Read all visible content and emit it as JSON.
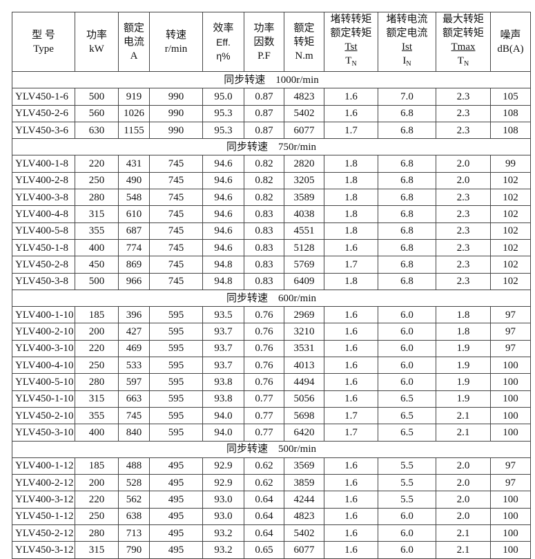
{
  "headers": [
    {
      "l1": "型 号",
      "l2": "Type"
    },
    {
      "l1": "功率",
      "l2": "kW"
    },
    {
      "l1": "额定",
      "l2": "电流",
      "l3": "A"
    },
    {
      "l1": "转速",
      "l2": "r/min"
    },
    {
      "l1": "效率",
      "l2": "Eff.",
      "l3": "η%"
    },
    {
      "l1": "功率",
      "l2": "因数",
      "l3": "P.F"
    },
    {
      "l1": "额定",
      "l2": "转矩",
      "l3": "N.m"
    },
    {
      "l1": "堵转转矩",
      "l2": "额定转矩",
      "num": "Tst",
      "den": "T",
      "sub": "N"
    },
    {
      "l1": "堵转电流",
      "l2": "额定电流",
      "num": "Ist",
      "den": "I",
      "sub": "N"
    },
    {
      "l1": "最大转矩",
      "l2": "额定转矩",
      "num": "Tmax",
      "den": "T",
      "sub": "N"
    },
    {
      "l1": "噪声",
      "l2": "dB(A)"
    }
  ],
  "groups": [
    {
      "title": "同步转速　1000r/min",
      "rows": [
        [
          "YLV450-1-6",
          "500",
          "919",
          "990",
          "95.0",
          "0.87",
          "4823",
          "1.6",
          "7.0",
          "2.3",
          "105"
        ],
        [
          "YLV450-2-6",
          "560",
          "1026",
          "990",
          "95.3",
          "0.87",
          "5402",
          "1.6",
          "6.8",
          "2.3",
          "108"
        ],
        [
          "YLV450-3-6",
          "630",
          "1155",
          "990",
          "95.3",
          "0.87",
          "6077",
          "1.7",
          "6.8",
          "2.3",
          "108"
        ]
      ]
    },
    {
      "title": "同步转速　750r/min",
      "rows": [
        [
          "YLV400-1-8",
          "220",
          "431",
          "745",
          "94.6",
          "0.82",
          "2820",
          "1.8",
          "6.8",
          "2.0",
          "99"
        ],
        [
          "YLV400-2-8",
          "250",
          "490",
          "745",
          "94.6",
          "0.82",
          "3205",
          "1.8",
          "6.8",
          "2.0",
          "102"
        ],
        [
          "YLV400-3-8",
          "280",
          "548",
          "745",
          "94.6",
          "0.82",
          "3589",
          "1.8",
          "6.8",
          "2.3",
          "102"
        ],
        [
          "YLV400-4-8",
          "315",
          "610",
          "745",
          "94.6",
          "0.83",
          "4038",
          "1.8",
          "6.8",
          "2.3",
          "102"
        ],
        [
          "YLV400-5-8",
          "355",
          "687",
          "745",
          "94.6",
          "0.83",
          "4551",
          "1.8",
          "6.8",
          "2.3",
          "102"
        ],
        [
          "YLV450-1-8",
          "400",
          "774",
          "745",
          "94.6",
          "0.83",
          "5128",
          "1.6",
          "6.8",
          "2.3",
          "102"
        ],
        [
          "YLV450-2-8",
          "450",
          "869",
          "745",
          "94.8",
          "0.83",
          "5769",
          "1.7",
          "6.8",
          "2.3",
          "102"
        ],
        [
          "YLV450-3-8",
          "500",
          "966",
          "745",
          "94.8",
          "0.83",
          "6409",
          "1.8",
          "6.8",
          "2.3",
          "102"
        ]
      ]
    },
    {
      "title": "同步转速　600r/min",
      "rows": [
        [
          "YLV400-1-10",
          "185",
          "396",
          "595",
          "93.5",
          "0.76",
          "2969",
          "1.6",
          "6.0",
          "1.8",
          "97"
        ],
        [
          "YLV400-2-10",
          "200",
          "427",
          "595",
          "93.7",
          "0.76",
          "3210",
          "1.6",
          "6.0",
          "1.8",
          "97"
        ],
        [
          "YLV400-3-10",
          "220",
          "469",
          "595",
          "93.7",
          "0.76",
          "3531",
          "1.6",
          "6.0",
          "1.9",
          "97"
        ],
        [
          "YLV400-4-10",
          "250",
          "533",
          "595",
          "93.7",
          "0.76",
          "4013",
          "1.6",
          "6.0",
          "1.9",
          "100"
        ],
        [
          "YLV400-5-10",
          "280",
          "597",
          "595",
          "93.8",
          "0.76",
          "4494",
          "1.6",
          "6.0",
          "1.9",
          "100"
        ],
        [
          "YLV450-1-10",
          "315",
          "663",
          "595",
          "93.8",
          "0.77",
          "5056",
          "1.6",
          "6.5",
          "1.9",
          "100"
        ],
        [
          "YLV450-2-10",
          "355",
          "745",
          "595",
          "94.0",
          "0.77",
          "5698",
          "1.7",
          "6.5",
          "2.1",
          "100"
        ],
        [
          "YLV450-3-10",
          "400",
          "840",
          "595",
          "94.0",
          "0.77",
          "6420",
          "1.7",
          "6.5",
          "2.1",
          "100"
        ]
      ]
    },
    {
      "title": "同步转速　500r/min",
      "rows": [
        [
          "YLV400-1-12",
          "185",
          "488",
          "495",
          "92.9",
          "0.62",
          "3569",
          "1.6",
          "5.5",
          "2.0",
          "97"
        ],
        [
          "YLV400-2-12",
          "200",
          "528",
          "495",
          "92.9",
          "0.62",
          "3859",
          "1.6",
          "5.5",
          "2.0",
          "97"
        ],
        [
          "YLV400-3-12",
          "220",
          "562",
          "495",
          "93.0",
          "0.64",
          "4244",
          "1.6",
          "5.5",
          "2.0",
          "100"
        ],
        [
          "YLV450-1-12",
          "250",
          "638",
          "495",
          "93.0",
          "0.64",
          "4823",
          "1.6",
          "6.0",
          "2.0",
          "100"
        ],
        [
          "YLV450-2-12",
          "280",
          "713",
          "495",
          "93.2",
          "0.64",
          "5402",
          "1.6",
          "6.0",
          "2.1",
          "100"
        ],
        [
          "YLV450-3-12",
          "315",
          "790",
          "495",
          "93.2",
          "0.65",
          "6077",
          "1.6",
          "6.0",
          "2.1",
          "100"
        ]
      ]
    }
  ]
}
